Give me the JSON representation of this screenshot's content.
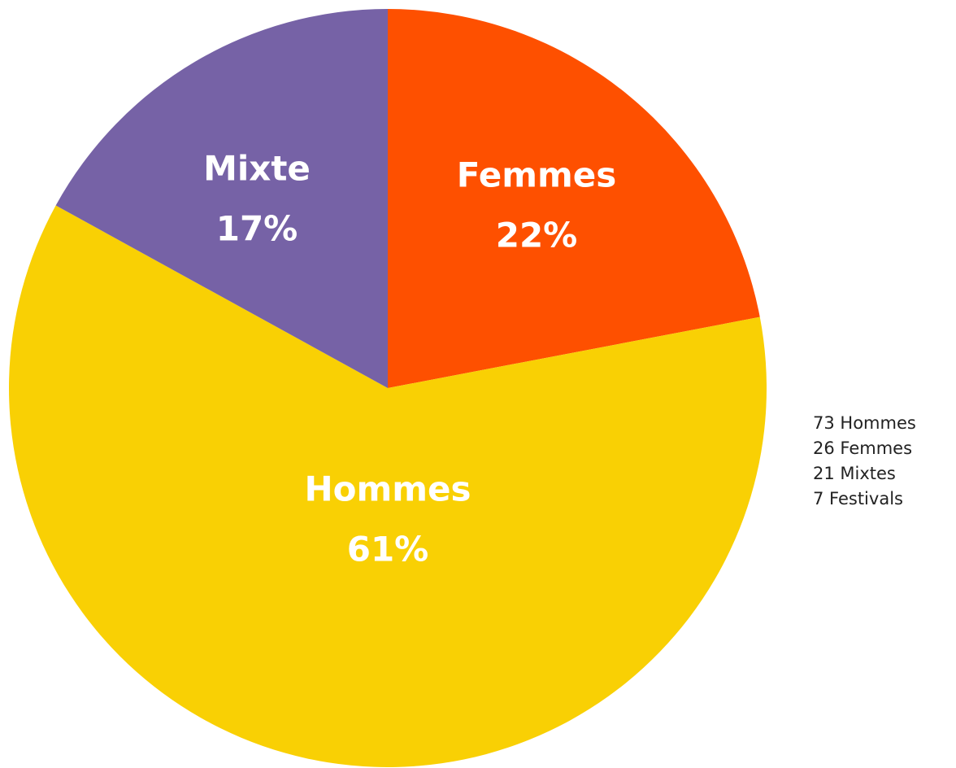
{
  "chart_data": {
    "type": "pie",
    "categories": [
      "Femmes",
      "Hommes",
      "Mixte"
    ],
    "values": [
      22,
      61,
      17
    ],
    "value_labels": [
      "22%",
      "61%",
      "17%"
    ],
    "colors": [
      "#fe5000",
      "#f9d004",
      "#7662a6"
    ],
    "annotations": [
      "73 Hommes",
      "26 Femmes",
      "21 Mixtes",
      "7 Festivals"
    ]
  }
}
